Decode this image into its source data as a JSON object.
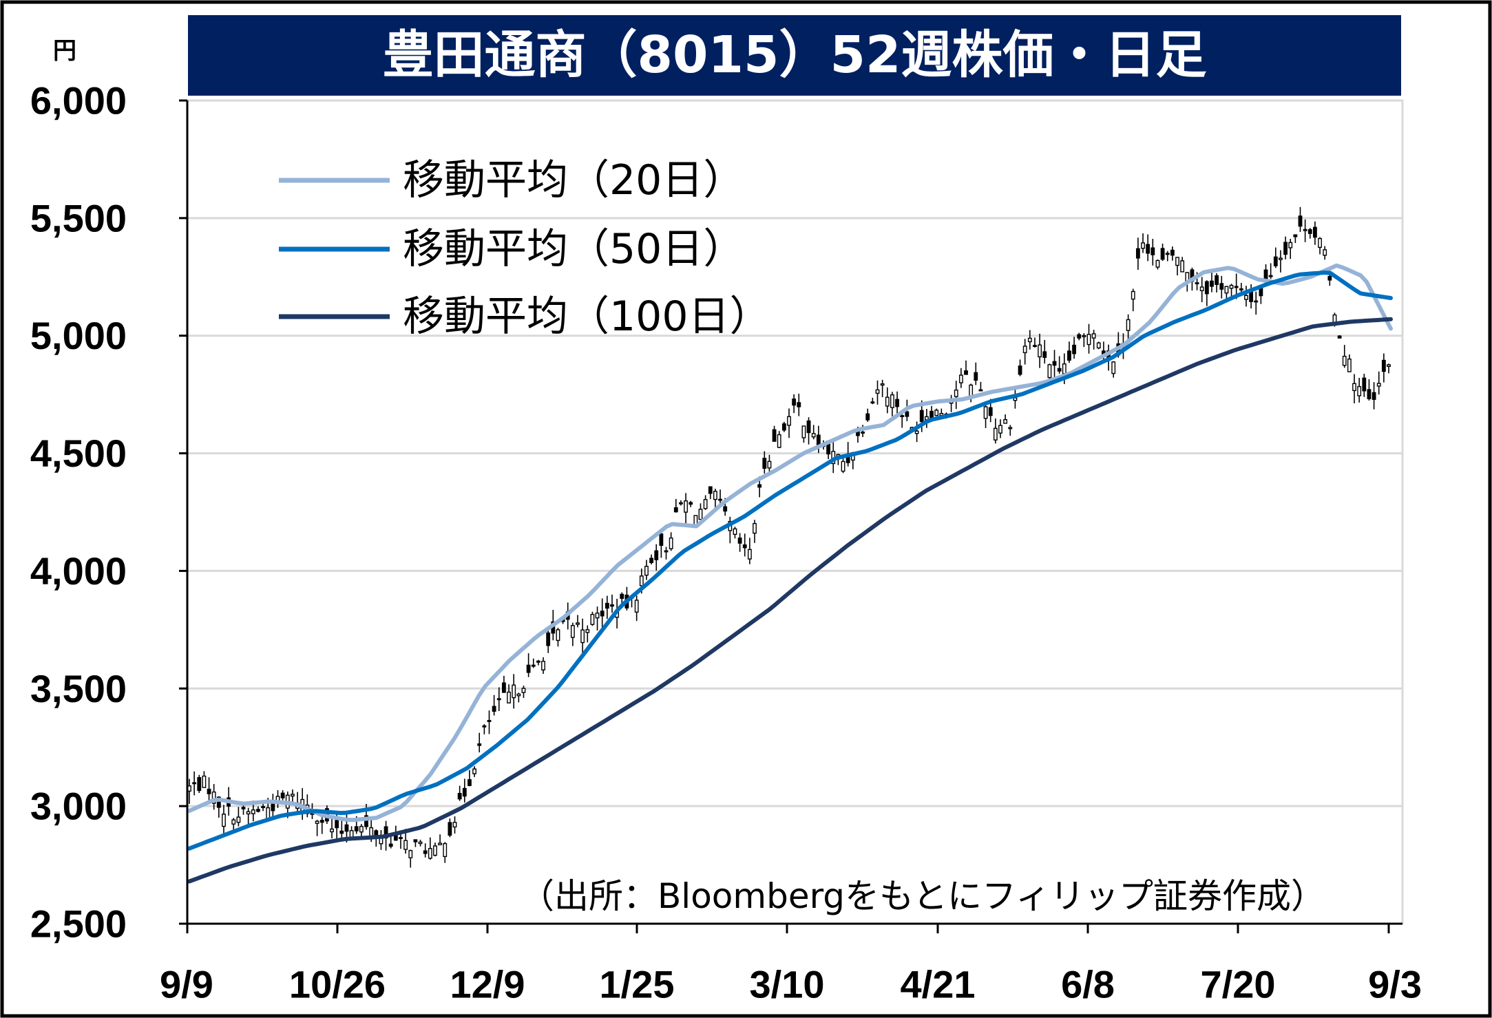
{
  "chart_data": {
    "type": "candlestick",
    "title": "豊田通商（8015）52週株価・日足",
    "y_unit": "円",
    "ylim": [
      2500,
      6000
    ],
    "y_ticks": [
      "2,500",
      "3,000",
      "3,500",
      "4,000",
      "4,500",
      "5,000",
      "5,500",
      "6,000"
    ],
    "x_ticks": [
      "9/9",
      "10/26",
      "12/9",
      "1/25",
      "3/10",
      "4/21",
      "6/8",
      "7/20",
      "9/3"
    ],
    "source": "（出所：Bloombergをもとにフィリップ証券作成）",
    "grid": true,
    "legend_position": "top-left",
    "candle_close_trend": [
      3080,
      3100,
      2990,
      2960,
      2980,
      3000,
      3040,
      3020,
      2950,
      2880,
      2920,
      2900,
      2860,
      2840,
      2830,
      2800,
      2920,
      3100,
      3330,
      3450,
      3500,
      3580,
      3700,
      3780,
      3760,
      3820,
      3850,
      3860,
      4050,
      4100,
      4300,
      4250,
      4320,
      4180,
      4050,
      4450,
      4600,
      4700,
      4560,
      4500,
      4460,
      4620,
      4800,
      4720,
      4600,
      4680,
      4680,
      4820,
      4800,
      4620,
      4640,
      5000,
      4920,
      4820,
      4950,
      5040,
      4880,
      5000,
      5420,
      5300,
      5350,
      5250,
      5200,
      5220,
      5180,
      5150,
      5300,
      5400,
      5480,
      5380,
      5000,
      4800,
      4700,
      4900
    ],
    "series": [
      {
        "name": "移動平均（20日）",
        "color": "#95b3d7",
        "values": [
          2980,
          3030,
          3010,
          3020,
          3010,
          2960,
          2940,
          2950,
          3000,
          3130,
          3300,
          3500,
          3620,
          3720,
          3800,
          3900,
          4020,
          4110,
          4200,
          4190,
          4290,
          4370,
          4430,
          4500,
          4550,
          4600,
          4620,
          4700,
          4720,
          4730,
          4760,
          4780,
          4800,
          4840,
          4900,
          4960,
          5060,
          5200,
          5270,
          5290,
          5240,
          5220,
          5250,
          5300,
          5250,
          5030
        ]
      },
      {
        "name": "移動平均（50日）",
        "color": "#0070c0",
        "values": [
          2820,
          2870,
          2920,
          2960,
          2980,
          2970,
          2990,
          3050,
          3090,
          3160,
          3260,
          3370,
          3510,
          3680,
          3850,
          3960,
          4080,
          4160,
          4230,
          4320,
          4400,
          4480,
          4510,
          4560,
          4640,
          4670,
          4720,
          4750,
          4800,
          4850,
          4910,
          5000,
          5060,
          5110,
          5170,
          5220,
          5260,
          5270,
          5180,
          5160
        ]
      },
      {
        "name": "移動平均（100日）",
        "color": "#1f3864",
        "values": [
          2680,
          2740,
          2790,
          2830,
          2860,
          2870,
          2910,
          2990,
          3090,
          3190,
          3290,
          3390,
          3490,
          3600,
          3720,
          3840,
          3980,
          4110,
          4230,
          4340,
          4430,
          4520,
          4600,
          4670,
          4740,
          4810,
          4880,
          4940,
          4990,
          5040,
          5060,
          5070
        ]
      }
    ]
  }
}
